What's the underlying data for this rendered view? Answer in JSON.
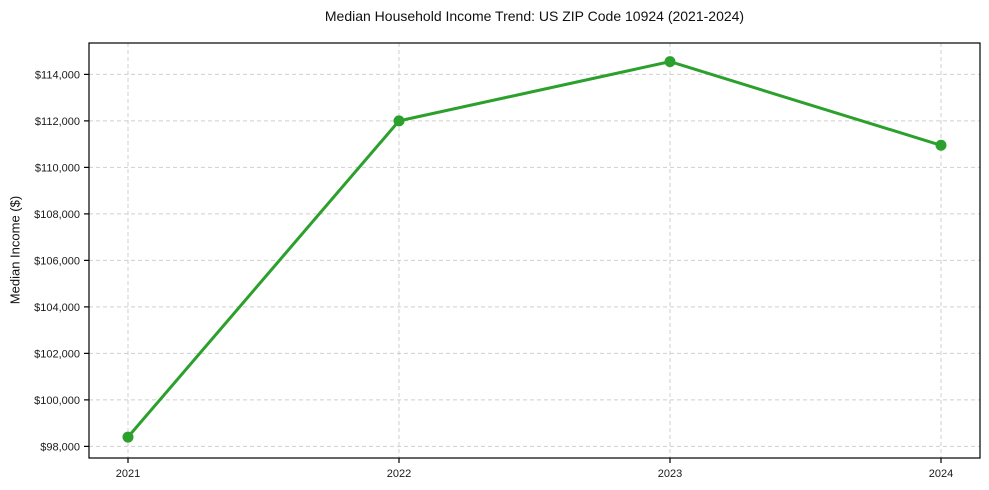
{
  "chart_data": {
    "type": "line",
    "title": "Median Household Income Trend: US ZIP Code 10924 (2021-2024)",
    "ylabel": "Median Income ($)",
    "categories": [
      "2021",
      "2022",
      "2023",
      "2024"
    ],
    "series": [
      {
        "name": "median-household-income",
        "values": [
          98400,
          112000,
          114550,
          110950
        ]
      }
    ],
    "ytick_values": [
      98000,
      100000,
      102000,
      104000,
      106000,
      108000,
      110000,
      112000,
      114000
    ],
    "ytick_labels": [
      "$98,000",
      "$100,000",
      "$102,000",
      "$104,000",
      "$106,000",
      "$108,000",
      "$110,000",
      "$112,000",
      "$114,000"
    ],
    "ylim": [
      97500,
      115350
    ],
    "grid": true,
    "grid_style": "dashed",
    "legend_position": "none",
    "line_color": "#2ca02c",
    "marker": "circle",
    "grid_color": "#cfcfcf",
    "text_color": "#1a1a1a"
  }
}
